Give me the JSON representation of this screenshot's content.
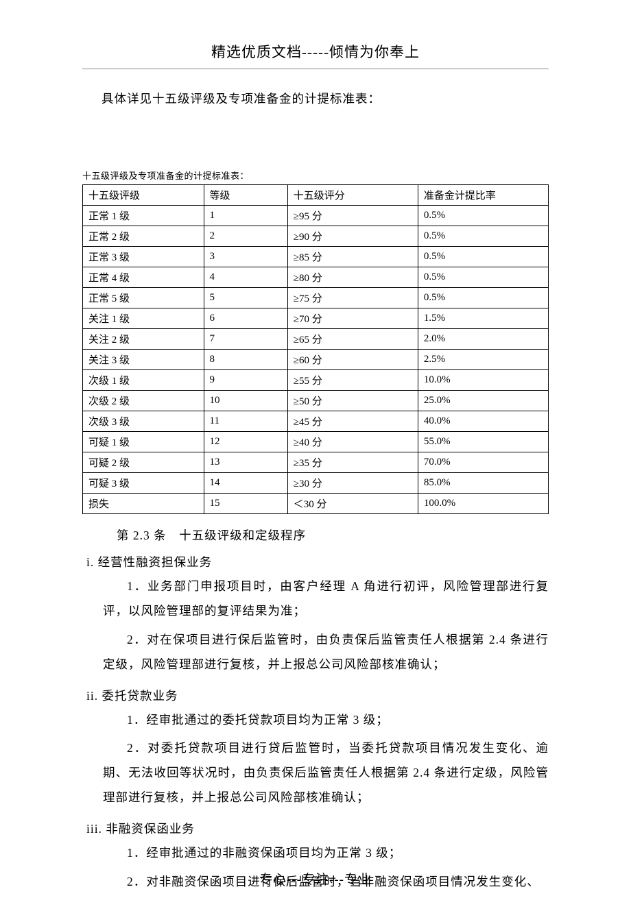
{
  "header": {
    "title": "精选优质文档-----倾情为你奉上"
  },
  "intro": "具体详见十五级评级及专项准备金的计提标准表：",
  "table": {
    "caption": "十五级评级及专项准备金的计提标准表：",
    "columns": [
      "十五级评级",
      "等级",
      "十五级评分",
      "准备金计提比率"
    ],
    "rows": [
      [
        "正常 1 级",
        "1",
        "≥95 分",
        "0.5%"
      ],
      [
        "正常 2 级",
        "2",
        "≥90 分",
        "0.5%"
      ],
      [
        "正常 3 级",
        "3",
        "≥85 分",
        "0.5%"
      ],
      [
        "正常 4 级",
        "4",
        "≥80 分",
        "0.5%"
      ],
      [
        "正常 5 级",
        "5",
        "≥75 分",
        "0.5%"
      ],
      [
        "关注 1 级",
        "6",
        "≥70 分",
        "1.5%"
      ],
      [
        "关注 2 级",
        "7",
        "≥65 分",
        "2.0%"
      ],
      [
        "关注 3 级",
        "8",
        "≥60 分",
        "2.5%"
      ],
      [
        "次级 1 级",
        "9",
        "≥55 分",
        "10.0%"
      ],
      [
        "次级 2 级",
        "10",
        "≥50 分",
        "25.0%"
      ],
      [
        "次级 3 级",
        "11",
        "≥45 分",
        "40.0%"
      ],
      [
        "可疑 1 级",
        "12",
        "≥40 分",
        "55.0%"
      ],
      [
        "可疑 2 级",
        "13",
        "≥35 分",
        "70.0%"
      ],
      [
        "可疑 3 级",
        "14",
        "≥30 分",
        "85.0%"
      ],
      [
        "损失",
        "15",
        "＜30 分",
        "100.0%"
      ]
    ]
  },
  "body": {
    "section_heading": "第 2.3 条　十五级评级和定级程序",
    "i_label": "i. 经营性融资担保业务",
    "i_p1": "1．业务部门申报项目时，由客户经理 A 角进行初评，风险管理部进行复评，以风险管理部的复评结果为准；",
    "i_p2": "2．对在保项目进行保后监管时，由负责保后监管责任人根据第 2.4 条进行定级，风险管理部进行复核，并上报总公司风险部核准确认；",
    "ii_label": "ii. 委托贷款业务",
    "ii_p1": "1．经审批通过的委托贷款项目均为正常 3 级；",
    "ii_p2": "2．对委托贷款项目进行贷后监管时，当委托贷款项目情况发生变化、逾期、无法收回等状况时，由负责保后监管责任人根据第 2.4 条进行定级，风险管理部进行复核，并上报总公司风险部核准确认；",
    "iii_label": "iii. 非融资保函业务",
    "iii_p1": "1．经审批通过的非融资保函项目均为正常 3 级；",
    "iii_p2": "2．对非融资保函项目进行保后监管时，当非融资保函项目情况发生变化、"
  },
  "footer": "专心---专注---专业"
}
